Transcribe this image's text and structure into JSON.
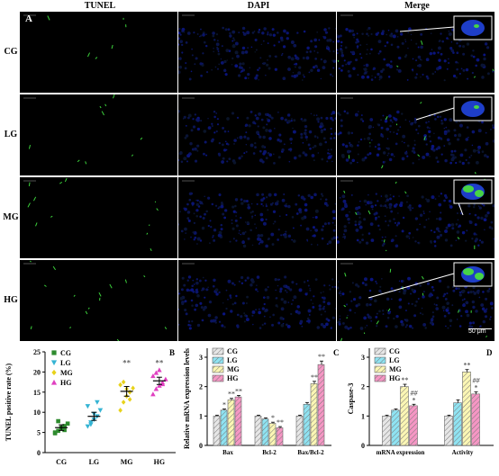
{
  "figure": {
    "panel_A_label": "A",
    "columns": [
      "TUNEL",
      "DAPI",
      "Merge"
    ],
    "rows": [
      "CG",
      "LG",
      "MG",
      "HG"
    ],
    "scale_bar": "50 μm"
  },
  "colors": {
    "CG": "#2e8b2e",
    "LG": "#35b4d4",
    "MG": "#e8d21a",
    "HG": "#e040c0"
  },
  "bar_colors": {
    "CG": "#e6e6e6",
    "LG": "#8fe3f2",
    "MG": "#fbf6b4",
    "HG": "#f596c4"
  },
  "chart_data": [
    {
      "type": "scatter",
      "panel": "B",
      "ylabel": "TUNEL positive rate (%)",
      "categories": [
        "CG",
        "LG",
        "MG",
        "HG"
      ],
      "legend": [
        "CG",
        "LG",
        "MG",
        "HG"
      ],
      "legend_position": "top-left",
      "ylim": [
        0,
        25
      ],
      "yticks": [
        0,
        5,
        10,
        15,
        20,
        25
      ],
      "means": [
        6.2,
        9.0,
        15.2,
        17.8
      ],
      "sem": [
        0.7,
        1.0,
        1.2,
        0.9
      ],
      "points": [
        [
          4.8,
          5.4,
          6.0,
          6.6,
          7.2,
          5.0,
          7.8,
          6.2,
          5.6
        ],
        [
          6.5,
          7.5,
          8.2,
          9.0,
          10.5,
          11.5,
          7.0,
          9.6,
          12.5
        ],
        [
          10.5,
          12.5,
          14.0,
          15.0,
          16.0,
          16.8,
          17.5,
          15.8,
          13.2
        ],
        [
          14.5,
          15.8,
          16.6,
          17.4,
          18.2,
          19.0,
          19.8,
          20.5,
          17.0
        ]
      ],
      "significance": [
        "",
        "",
        "**",
        "**"
      ]
    },
    {
      "type": "bar",
      "panel": "C",
      "ylabel": "Relative mRNA expression levels",
      "categories": [
        "Bax",
        "Bcl-2",
        "Bax/Bcl-2"
      ],
      "legend_position": "top-left",
      "ylim": [
        0,
        3
      ],
      "yticks": [
        0,
        1,
        2,
        3
      ],
      "series": [
        {
          "name": "CG",
          "values": [
            1.0,
            1.0,
            1.0
          ],
          "err": [
            0.03,
            0.03,
            0.03
          ],
          "sig": [
            "",
            "",
            ""
          ]
        },
        {
          "name": "LG",
          "values": [
            1.2,
            0.9,
            1.4
          ],
          "err": [
            0.04,
            0.04,
            0.06
          ],
          "sig": [
            "*",
            "",
            ""
          ]
        },
        {
          "name": "MG",
          "values": [
            1.55,
            0.75,
            2.1
          ],
          "err": [
            0.05,
            0.04,
            0.08
          ],
          "sig": [
            "**",
            "*",
            "**"
          ]
        },
        {
          "name": "HG",
          "values": [
            1.65,
            0.6,
            2.75
          ],
          "err": [
            0.05,
            0.04,
            0.12
          ],
          "sig": [
            "**",
            "**",
            "**"
          ]
        }
      ]
    },
    {
      "type": "bar",
      "panel": "D",
      "ylabel": "Caspase-3",
      "categories": [
        "mRNA expression",
        "Activity"
      ],
      "legend_position": "top-left",
      "ylim": [
        0,
        3
      ],
      "yticks": [
        0,
        1,
        2,
        3
      ],
      "series": [
        {
          "name": "CG",
          "values": [
            1.0,
            1.0
          ],
          "err": [
            0.03,
            0.03
          ],
          "sig": [
            "",
            ""
          ],
          "sig2": [
            "",
            ""
          ]
        },
        {
          "name": "LG",
          "values": [
            1.2,
            1.45
          ],
          "err": [
            0.04,
            0.1
          ],
          "sig": [
            "",
            ""
          ],
          "sig2": [
            "",
            ""
          ]
        },
        {
          "name": "MG",
          "values": [
            2.0,
            2.5
          ],
          "err": [
            0.08,
            0.08
          ],
          "sig": [
            "**",
            "**"
          ],
          "sig2": [
            "",
            ""
          ]
        },
        {
          "name": "HG",
          "values": [
            1.35,
            1.75
          ],
          "err": [
            0.05,
            0.07
          ],
          "sig": [
            "*",
            "*"
          ],
          "sig2": [
            "##",
            "##"
          ]
        }
      ]
    }
  ]
}
